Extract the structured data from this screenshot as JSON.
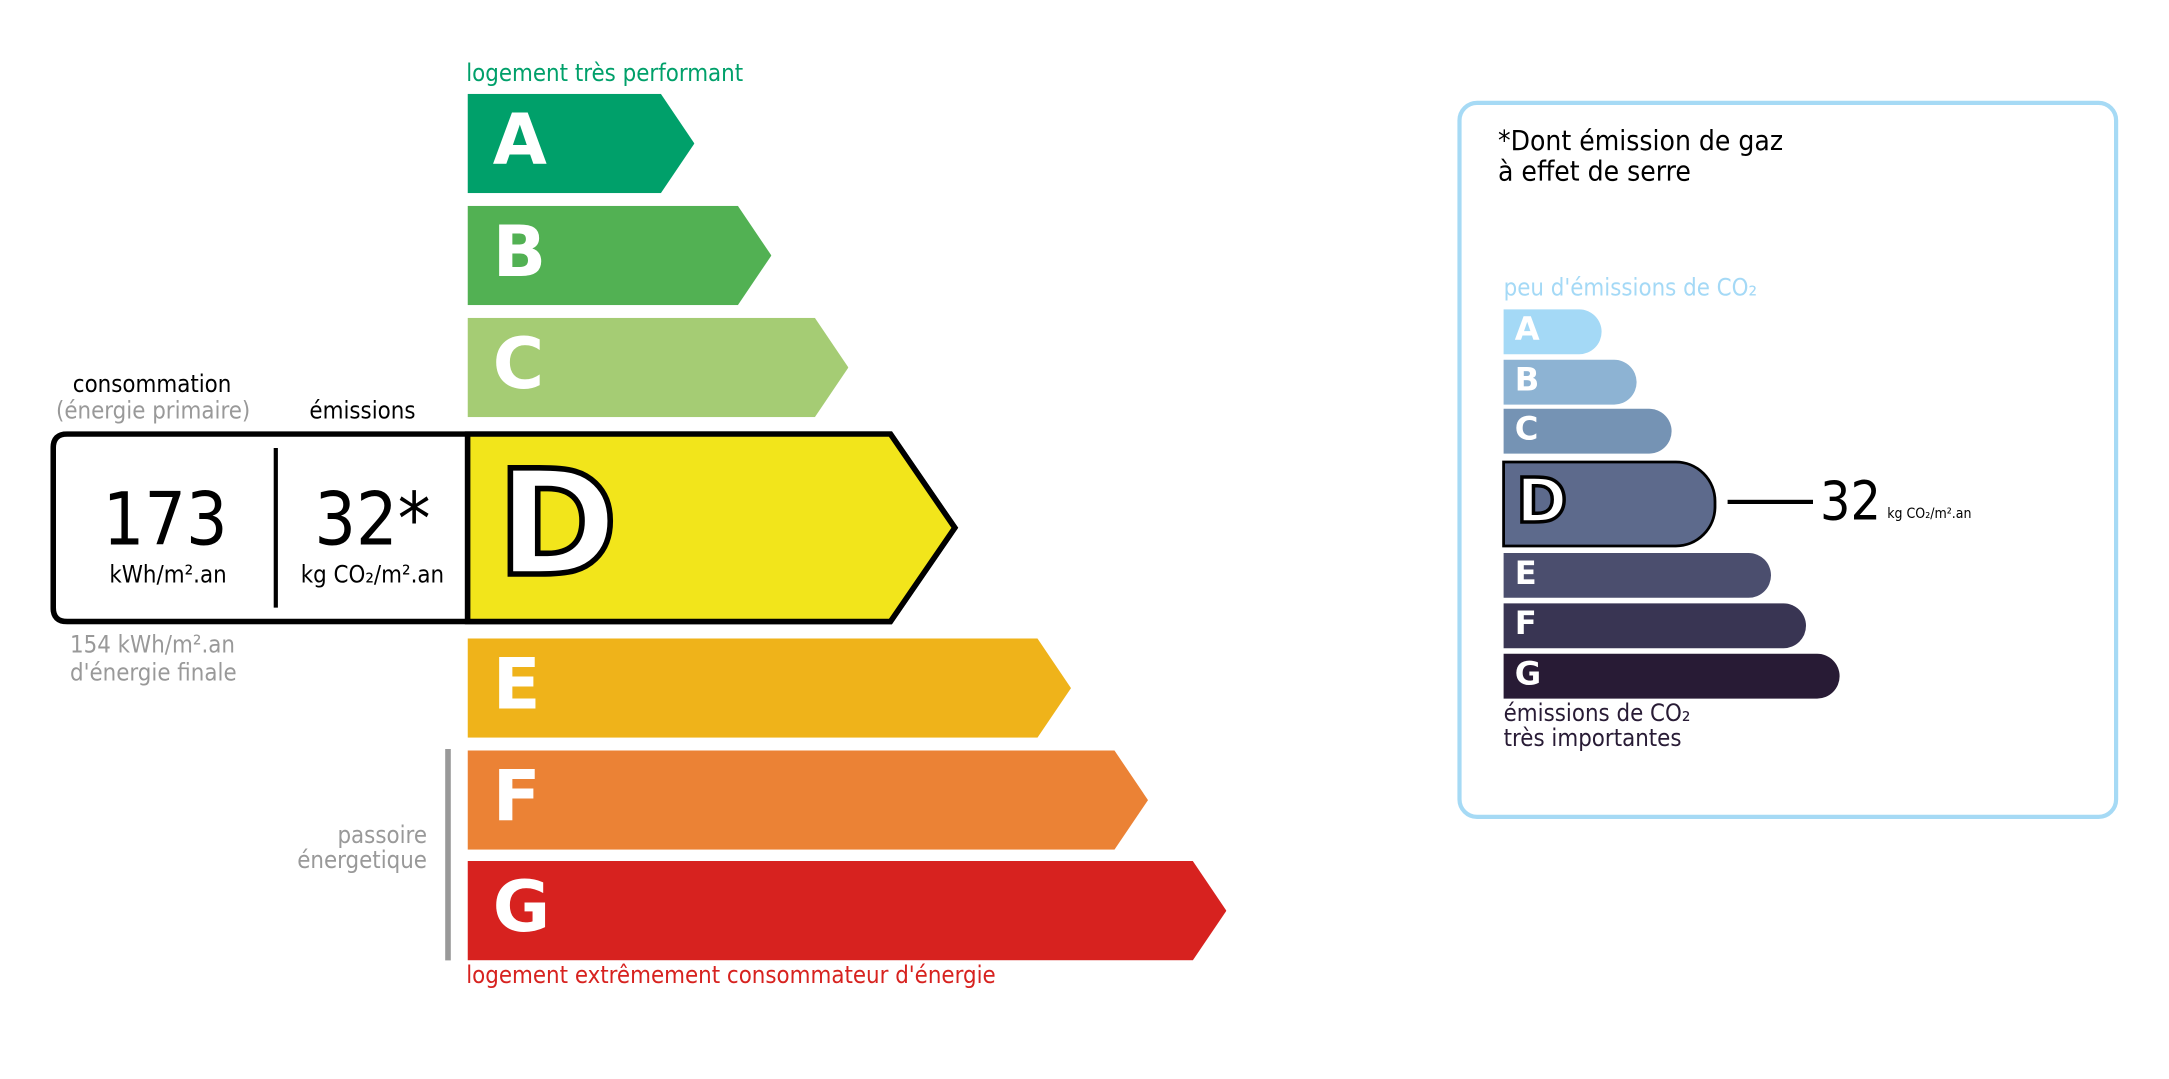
{
  "energy": {
    "top_label": "logement très performant",
    "bottom_label": "logement extrêmement consommateur d'énergie",
    "passoire_line1": "passoire",
    "passoire_line2": "énergetique",
    "classes": [
      {
        "letter": "A",
        "color": "#00a06a"
      },
      {
        "letter": "B",
        "color": "#52b153"
      },
      {
        "letter": "C",
        "color": "#a5cc74"
      },
      {
        "letter": "D",
        "color": "#f2e51b"
      },
      {
        "letter": "E",
        "color": "#efb31a"
      },
      {
        "letter": "F",
        "color": "#eb8235"
      },
      {
        "letter": "G",
        "color": "#d7221f"
      }
    ],
    "current_class": "D",
    "consumption_label": "consommation",
    "consumption_sub": "(énergie primaire)",
    "emissions_label": "émissions",
    "consumption_value": "173",
    "consumption_unit": "kWh/m².an",
    "emissions_value": "32*",
    "emissions_unit": "kg CO₂/m².an",
    "final_energy_line1": "154 kWh/m².an",
    "final_energy_line2": "d'énergie finale"
  },
  "ges": {
    "title_line1": "*Dont émission de gaz",
    "title_line2": "à effet de serre",
    "top_label": "peu d'émissions de CO₂",
    "bottom_line1": "émissions de CO₂",
    "bottom_line2": "très importantes",
    "classes": [
      {
        "letter": "A",
        "color": "#a4d9f6"
      },
      {
        "letter": "B",
        "color": "#8db3d3"
      },
      {
        "letter": "C",
        "color": "#7593b4"
      },
      {
        "letter": "D",
        "color": "#5d6a8c"
      },
      {
        "letter": "E",
        "color": "#4b4e6e"
      },
      {
        "letter": "F",
        "color": "#393553"
      },
      {
        "letter": "G",
        "color": "#281b35"
      }
    ],
    "current_class": "D",
    "value": "32",
    "unit": "kg CO₂/m².an",
    "border_color": "#a6daf5"
  }
}
